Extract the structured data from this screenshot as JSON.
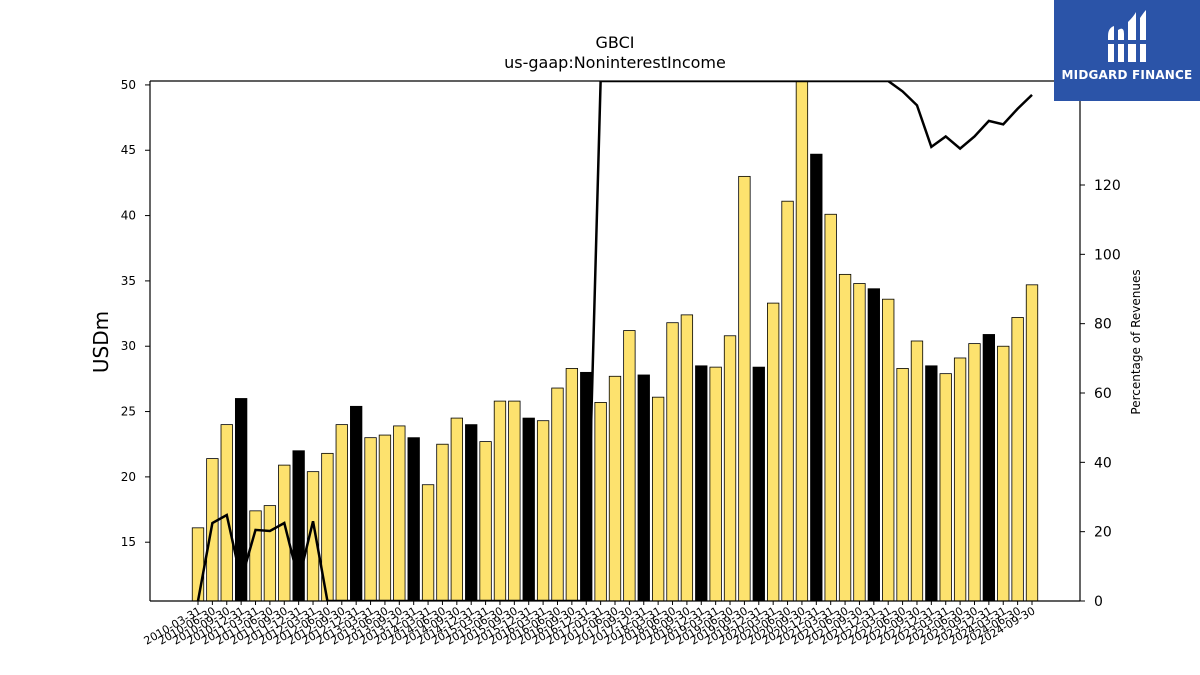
{
  "brand": {
    "name": "MIDGARD FINANCE",
    "bg": "#2b54a8"
  },
  "chart_data": {
    "type": "bar",
    "title": "GBCI",
    "subtitle": "us-gaap:NoninterestIncome",
    "ylabel": "USDm",
    "y2label": "Percentage of Revenues",
    "ylim": [
      10.5,
      50.3
    ],
    "y2lim": [
      0,
      150
    ],
    "yticks": [
      15,
      20,
      25,
      30,
      35,
      40,
      45,
      50
    ],
    "y2ticks": [
      0,
      20,
      40,
      60,
      80,
      100,
      120
    ],
    "colors": {
      "q_bar": "#fde26e",
      "q4_bar": "#000000",
      "line": "#000000"
    },
    "categories": [
      "2010-03-31",
      "2010-06-30",
      "2010-09-30",
      "2010-12-31",
      "2011-03-31",
      "2011-06-30",
      "2011-09-30",
      "2011-12-31",
      "2012-03-31",
      "2012-06-30",
      "2012-09-30",
      "2012-12-31",
      "2013-03-31",
      "2013-06-30",
      "2013-09-30",
      "2013-12-31",
      "2014-03-31",
      "2014-06-30",
      "2014-09-30",
      "2014-12-31",
      "2015-03-31",
      "2015-06-30",
      "2015-09-30",
      "2015-12-31",
      "2016-03-31",
      "2016-06-30",
      "2016-09-30",
      "2016-12-31",
      "2017-03-31",
      "2017-06-30",
      "2017-09-30",
      "2017-12-31",
      "2018-03-31",
      "2018-06-30",
      "2018-09-30",
      "2018-12-31",
      "2019-03-31",
      "2019-06-30",
      "2019-09-30",
      "2019-12-31",
      "2020-03-31",
      "2020-06-30",
      "2020-09-30",
      "2020-12-31",
      "2021-03-31",
      "2021-06-30",
      "2021-09-30",
      "2021-12-31",
      "2022-03-31",
      "2022-06-30",
      "2022-09-30",
      "2022-12-31",
      "2023-03-31",
      "2023-06-30",
      "2023-09-30",
      "2023-12-31",
      "2024-03-31",
      "2024-06-30",
      "2024-09-30"
    ],
    "series": [
      {
        "type": "bar",
        "values": [
          16.1,
          21.4,
          24.0,
          26.0,
          17.4,
          17.8,
          20.9,
          22.0,
          20.4,
          21.8,
          24.0,
          25.4,
          23.0,
          23.2,
          23.9,
          23.0,
          19.4,
          22.5,
          24.5,
          24.0,
          22.7,
          25.8,
          25.8,
          24.5,
          24.3,
          26.8,
          28.3,
          28.0,
          25.7,
          27.7,
          31.2,
          27.8,
          26.1,
          31.8,
          32.4,
          28.5,
          28.4,
          30.8,
          43.0,
          28.4,
          33.3,
          41.1,
          50.6,
          44.7,
          40.1,
          35.5,
          34.8,
          34.4,
          33.6,
          28.3,
          30.4,
          28.5,
          27.9,
          29.1,
          30.2,
          30.9,
          30.0,
          32.2,
          34.7
        ]
      },
      {
        "type": "line",
        "axis": "right",
        "values": [
          0,
          22.5,
          24.8,
          6,
          20.5,
          20.2,
          22.5,
          6,
          23,
          0,
          0,
          0,
          0,
          0,
          0,
          0,
          0,
          0,
          0,
          0,
          0,
          0,
          0,
          0,
          0,
          0,
          0,
          0,
          150,
          150,
          150,
          150,
          150,
          150,
          150,
          150,
          150,
          150,
          150,
          150,
          150,
          150,
          150,
          150,
          150,
          150,
          150,
          150,
          150,
          147,
          143,
          131,
          134,
          130.5,
          134,
          138.5,
          137.5,
          142,
          146
        ]
      }
    ]
  }
}
